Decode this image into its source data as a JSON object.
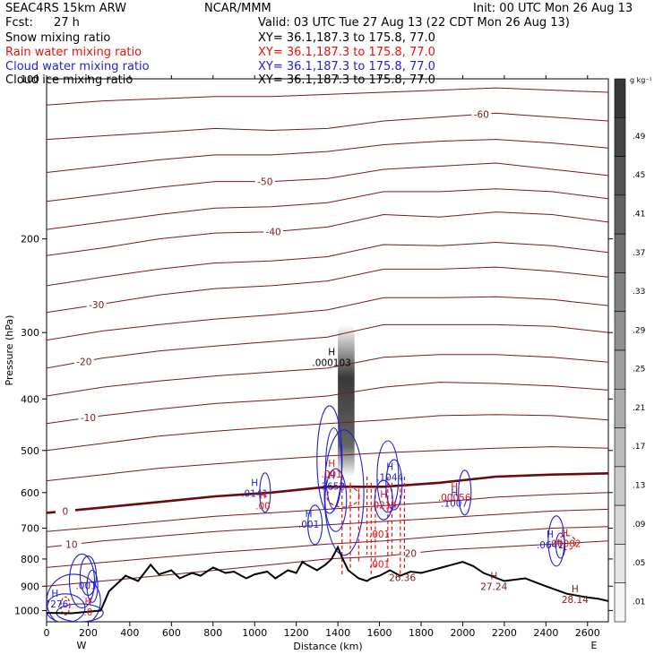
{
  "header": {
    "model": "SEAC4RS 15km ARW",
    "center": "NCAR/MMM",
    "init": "Init: 00 UTC Mon 26 Aug 13",
    "fcst_label": "Fcst:",
    "fcst_value": "27 h",
    "valid": "Valid: 03 UTC Tue 27 Aug 13 (22 CDT Mon 26 Aug 13)"
  },
  "fields": [
    {
      "name": "Snow mixing ratio",
      "xy": "XY=  36.1,187.3 to 175.8, 77.0",
      "color": "#000000"
    },
    {
      "name": "Rain water mixing ratio",
      "xy": "XY=  36.1,187.3 to 175.8, 77.0",
      "color": "#e8120c"
    },
    {
      "name": "Cloud water mixing ratio",
      "xy": "XY=  36.1,187.3 to 175.8, 77.0",
      "color": "#1f1fd6"
    },
    {
      "name": "Cloud ice mixing ratio",
      "xy": "XY=  36.1,187.3 to 175.8, 77.0",
      "color": "#000000"
    }
  ],
  "colors": {
    "temperature": "#7a1a1a",
    "zero_isotherm": "#6b0a0a",
    "rain": "#e8120c",
    "cloud": "#1f1fd6",
    "terrain": "#000000"
  },
  "chart_data": {
    "type": "cross-section",
    "xlabel": "Distance (km)",
    "ylabel": "Pressure (hPa)",
    "xlim": [
      0,
      2700
    ],
    "ylim": [
      1050,
      100
    ],
    "y_scale": "log",
    "x_ticks": [
      "0",
      "200",
      "400",
      "600",
      "800",
      "1000",
      "1200",
      "1400",
      "1600",
      "1800",
      "2000",
      "2200",
      "2400",
      "2600"
    ],
    "y_ticks": [
      "200",
      "300",
      "400",
      "500",
      "600",
      "700",
      "800",
      "900",
      "1000"
    ],
    "y_tick_top": "100",
    "x_end_left": "W",
    "x_end_right": "E",
    "colorbar": {
      "unit": "g kg⁻¹",
      "labels": [
        ".01",
        ".05",
        ".09",
        ".13",
        ".17",
        ".21",
        ".25",
        ".29",
        ".33",
        ".37",
        ".41",
        ".45",
        ".49"
      ]
    },
    "isotherm_labels_c": [
      "-60",
      "-50",
      "-40",
      "-30",
      "-20",
      "-10",
      "0",
      "10",
      "20"
    ],
    "terrain_profile": [
      [
        0,
        1010
      ],
      [
        120,
        1012
      ],
      [
        200,
        1005
      ],
      [
        260,
        1000
      ],
      [
        300,
        920
      ],
      [
        380,
        860
      ],
      [
        440,
        880
      ],
      [
        500,
        820
      ],
      [
        540,
        855
      ],
      [
        600,
        840
      ],
      [
        640,
        870
      ],
      [
        700,
        850
      ],
      [
        740,
        860
      ],
      [
        800,
        830
      ],
      [
        860,
        850
      ],
      [
        900,
        845
      ],
      [
        960,
        870
      ],
      [
        1000,
        855
      ],
      [
        1060,
        845
      ],
      [
        1100,
        870
      ],
      [
        1160,
        840
      ],
      [
        1200,
        850
      ],
      [
        1230,
        810
      ],
      [
        1250,
        820
      ],
      [
        1300,
        840
      ],
      [
        1340,
        820
      ],
      [
        1370,
        800
      ],
      [
        1400,
        760
      ],
      [
        1420,
        795
      ],
      [
        1450,
        840
      ],
      [
        1500,
        870
      ],
      [
        1540,
        880
      ],
      [
        1560,
        870
      ],
      [
        1600,
        860
      ],
      [
        1650,
        840
      ],
      [
        1700,
        860
      ],
      [
        1750,
        845
      ],
      [
        1800,
        850
      ],
      [
        1900,
        830
      ],
      [
        2000,
        810
      ],
      [
        2050,
        825
      ],
      [
        2100,
        850
      ],
      [
        2200,
        880
      ],
      [
        2300,
        870
      ],
      [
        2400,
        900
      ],
      [
        2500,
        930
      ],
      [
        2600,
        945
      ],
      [
        2650,
        950
      ],
      [
        2700,
        960
      ]
    ],
    "annotations": [
      {
        "text": "H",
        "value": ".000103",
        "x": 1370,
        "p": 343,
        "color": "black"
      },
      {
        "text": "H",
        "value": ".0141",
        "x": 1000,
        "p": 604,
        "color": "blue"
      },
      {
        "text": "H",
        "value": ".00",
        "x": 1040,
        "p": 638,
        "color": "red"
      },
      {
        "text": "H",
        "value": ".3652",
        "x": 1370,
        "p": 585,
        "color": "blue"
      },
      {
        "text": "H",
        "value": ".001",
        "x": 1370,
        "p": 556,
        "color": "red"
      },
      {
        "text": "H",
        "value": ".1044",
        "x": 1650,
        "p": 563,
        "color": "blue"
      },
      {
        "text": "H",
        "value": ".0214",
        "x": 1620,
        "p": 635,
        "color": "red"
      },
      {
        "text": "H",
        "value": ".00056",
        "x": 1960,
        "p": 615,
        "color": "red"
      },
      {
        "text": "H",
        "value": ".1007",
        "x": 1960,
        "p": 630,
        "color": "blue"
      },
      {
        "text": "H",
        "value": ".001",
        "x": 1260,
        "p": 690,
        "color": "blue"
      },
      {
        "text": "H",
        "value": ".00082",
        "x": 2490,
        "p": 750,
        "color": "red"
      },
      {
        "text": "H",
        "value": ".0641",
        "x": 2420,
        "p": 755,
        "color": "blue"
      },
      {
        "text": "H",
        "value": "27.24",
        "x": 2150,
        "p": 905,
        "color": "brown"
      },
      {
        "text": "H",
        "value": "28.14",
        "x": 2540,
        "p": 957,
        "color": "brown"
      },
      {
        "text": "H",
        "value": ".7276",
        "x": 40,
        "p": 975,
        "color": "blue"
      },
      {
        "text": "H",
        "value": ".0",
        "x": 200,
        "p": 1010,
        "color": "red"
      },
      {
        "text": "",
        "value": "26.36",
        "x": 1710,
        "p": 870,
        "color": "brown"
      },
      {
        "text": "",
        "value": ".001",
        "x": 190,
        "p": 900,
        "color": "blue"
      },
      {
        "text": "",
        "value": ".001",
        "x": 1600,
        "p": 720,
        "color": "red"
      },
      {
        "text": "",
        "value": ".001",
        "x": 1600,
        "p": 820,
        "color": "red"
      }
    ]
  }
}
